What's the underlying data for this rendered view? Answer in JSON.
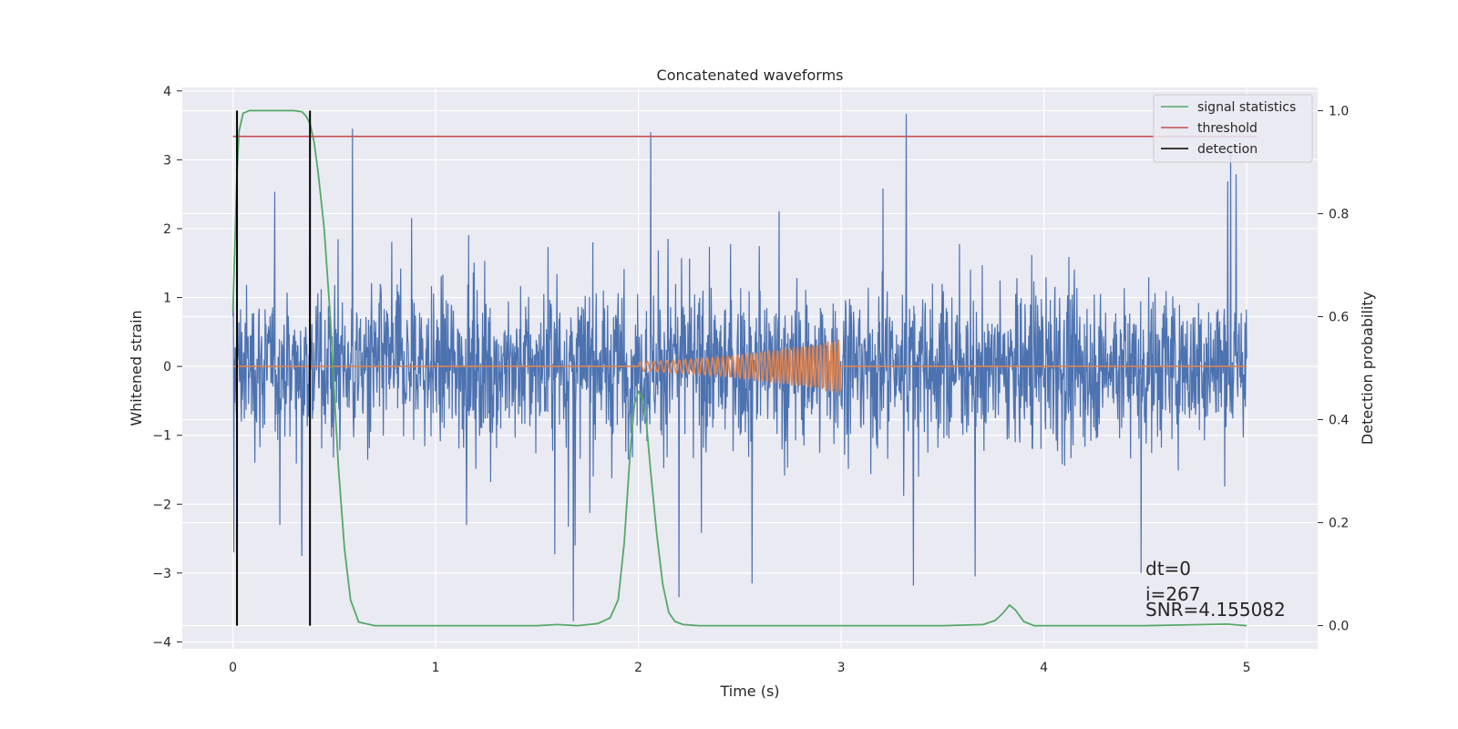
{
  "chart_data": {
    "type": "line",
    "title": "Concatenated waveforms",
    "xlabel": "Time (s)",
    "ylabel": "Whitened strain",
    "ylabel_right": "Detection probability",
    "xlim": [
      -0.25,
      5.35
    ],
    "ylim": [
      -4.1,
      4.05
    ],
    "ylim_right": [
      -0.045,
      1.045
    ],
    "x_ticks": [
      0,
      1,
      2,
      3,
      4,
      5
    ],
    "y_ticks": [
      -4,
      -3,
      -2,
      -1,
      0,
      1,
      2,
      3,
      4
    ],
    "y_ticks_right": [
      0.0,
      0.2,
      0.4,
      0.6,
      0.8,
      1.0
    ],
    "y_tick_labels": [
      "−4",
      "−3",
      "−2",
      "−1",
      "0",
      "1",
      "2",
      "3",
      "4"
    ],
    "y_tick_labels_right": [
      "0.0",
      "0.2",
      "0.4",
      "0.6",
      "0.8",
      "1.0"
    ],
    "grid": true,
    "legend_position": "top-right",
    "legend": [
      {
        "label": "signal statistics",
        "color": "#55a868",
        "kind": "line"
      },
      {
        "label": "threshold",
        "color": "#c44e52",
        "kind": "line"
      },
      {
        "label": "detection",
        "color": "#000000",
        "kind": "line"
      }
    ],
    "strain_series": {
      "color": "#4c72b0",
      "x_range": [
        0,
        5
      ],
      "noise_std": 0.55,
      "spikes": [
        {
          "x": 0.59,
          "y": 3.45
        },
        {
          "x": 2.06,
          "y": 3.4
        },
        {
          "x": 3.32,
          "y": 3.67
        },
        {
          "x": 4.92,
          "y": 3.2
        },
        {
          "x": 0.38,
          "y": 2.5
        },
        {
          "x": 0.005,
          "y": -2.7
        },
        {
          "x": 1.68,
          "y": -3.7
        },
        {
          "x": 4.48,
          "y": -3.0
        },
        {
          "x": 3.66,
          "y": -3.05
        },
        {
          "x": 2.56,
          "y": -3.15
        },
        {
          "x": 2.2,
          "y": -3.35
        },
        {
          "x": 0.34,
          "y": -2.75
        },
        {
          "x": 4.03,
          "y": 0.05
        }
      ]
    },
    "template_series": {
      "color": "#dd8452",
      "flat_range": [
        0,
        5
      ],
      "chirp_range": [
        2.0,
        3.0
      ],
      "chirp_start_amplitude": 0.07,
      "chirp_end_amplitude": 0.4,
      "chirp_start_frequency": 28,
      "chirp_end_frequency": 58
    },
    "signal_statistics": {
      "color": "#55a868",
      "x": [
        0.0,
        0.01,
        0.02,
        0.03,
        0.05,
        0.08,
        0.12,
        0.2,
        0.3,
        0.34,
        0.36,
        0.38,
        0.4,
        0.42,
        0.45,
        0.48,
        0.5,
        0.52,
        0.55,
        0.58,
        0.62,
        0.7,
        0.8,
        1.0,
        1.5,
        1.6,
        1.7,
        1.8,
        1.86,
        1.9,
        1.93,
        1.96,
        1.98,
        2.0,
        2.02,
        2.04,
        2.06,
        2.09,
        2.12,
        2.15,
        2.18,
        2.22,
        2.3,
        2.5,
        3.0,
        3.5,
        3.7,
        3.76,
        3.8,
        3.83,
        3.86,
        3.9,
        3.95,
        4.1,
        4.5,
        4.9,
        5.0
      ],
      "y": [
        0.61,
        0.75,
        0.88,
        0.96,
        0.995,
        1.0,
        1.0,
        1.0,
        1.0,
        0.998,
        0.99,
        0.975,
        0.94,
        0.88,
        0.77,
        0.6,
        0.45,
        0.31,
        0.15,
        0.05,
        0.007,
        0.0,
        0.0,
        0.0,
        0.0,
        0.002,
        0.0,
        0.004,
        0.015,
        0.05,
        0.16,
        0.34,
        0.43,
        0.455,
        0.44,
        0.39,
        0.3,
        0.18,
        0.08,
        0.025,
        0.008,
        0.002,
        0.0,
        0.0,
        0.0,
        0.0,
        0.002,
        0.01,
        0.025,
        0.04,
        0.03,
        0.008,
        0.0,
        0.0,
        0.0,
        0.003,
        0.0
      ]
    },
    "threshold": {
      "color": "#c44e52",
      "value": 0.95,
      "x_range": [
        0,
        5.05
      ]
    },
    "detection_lines": {
      "color": "#000000",
      "x": [
        0.02,
        0.38
      ],
      "y_range": [
        0,
        1
      ]
    },
    "annotations": {
      "dt": "dt=0",
      "i": "i=267",
      "snr": "SNR=4.155082"
    }
  }
}
